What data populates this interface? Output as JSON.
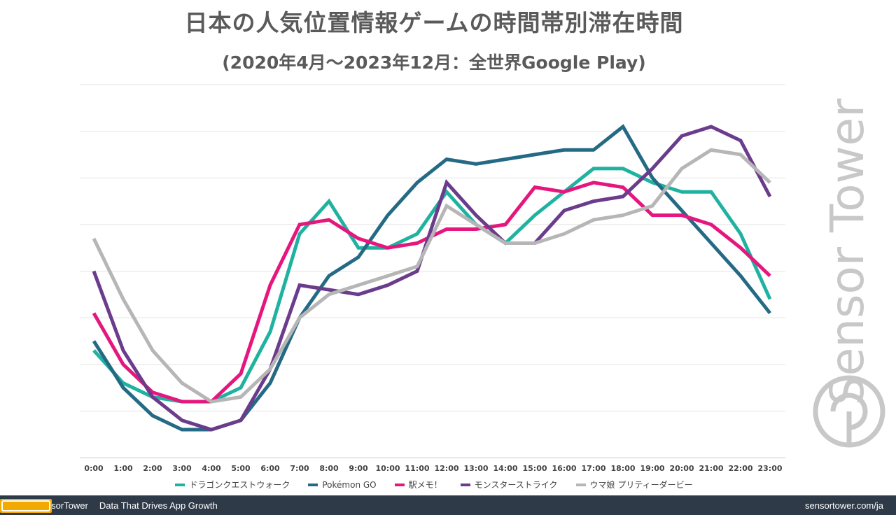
{
  "title": "日本の人気位置情報ゲームの時間帯別滞在時間",
  "subtitle": "(2020年4月～2023年12月：全世界Google Play)",
  "watermark_text": "Sensor Tower",
  "footer": {
    "brand": "SensorTower",
    "tagline": "Data That Drives App Growth",
    "url": "sensortower.com/ja"
  },
  "chart_data": {
    "type": "line",
    "title": "日本の人気位置情報ゲームの時間帯別滞在時間",
    "subtitle": "(2020年4月～2023年12月：全世界Google Play)",
    "x": [
      "0:00",
      "1:00",
      "2:00",
      "3:00",
      "4:00",
      "5:00",
      "6:00",
      "7:00",
      "8:00",
      "9:00",
      "10:00",
      "11:00",
      "12:00",
      "13:00",
      "14:00",
      "15:00",
      "16:00",
      "17:00",
      "18:00",
      "19:00",
      "20:00",
      "21:00",
      "22:00",
      "23:00"
    ],
    "ylim": [
      0,
      8
    ],
    "y_gridlines": 8,
    "y_tick_labels_shown": false,
    "grid": true,
    "legend_position": "bottom",
    "series": [
      {
        "name": "ドラゴンクエストウォーク",
        "color": "#20b2a0",
        "values": [
          2.3,
          1.6,
          1.3,
          1.2,
          1.2,
          1.5,
          2.7,
          4.8,
          5.5,
          4.5,
          4.5,
          4.8,
          5.7,
          5.0,
          4.6,
          5.2,
          5.7,
          6.2,
          6.2,
          5.9,
          5.7,
          5.7,
          4.8,
          3.4
        ]
      },
      {
        "name": "Pokémon GO",
        "color": "#256a84",
        "values": [
          2.5,
          1.5,
          0.9,
          0.6,
          0.6,
          0.8,
          1.6,
          3.0,
          3.9,
          4.3,
          5.2,
          5.9,
          6.4,
          6.3,
          6.4,
          6.5,
          6.6,
          6.6,
          7.1,
          6.0,
          5.3,
          4.6,
          3.9,
          3.1
        ]
      },
      {
        "name": "駅メモ！",
        "color": "#e5177e",
        "values": [
          3.1,
          2.0,
          1.4,
          1.2,
          1.2,
          1.8,
          3.7,
          5.0,
          5.1,
          4.7,
          4.5,
          4.6,
          4.9,
          4.9,
          5.0,
          5.8,
          5.7,
          5.9,
          5.8,
          5.2,
          5.2,
          5.0,
          4.5,
          3.9
        ]
      },
      {
        "name": "モンスターストライク",
        "color": "#6b3b8c",
        "values": [
          4.0,
          2.3,
          1.3,
          0.8,
          0.6,
          0.8,
          1.9,
          3.7,
          3.6,
          3.5,
          3.7,
          4.0,
          5.9,
          5.2,
          4.6,
          4.6,
          5.3,
          5.5,
          5.6,
          6.2,
          6.9,
          7.1,
          6.8,
          5.6
        ]
      },
      {
        "name": "ウマ娘 プリティーダービー",
        "color": "#b6b6b6",
        "values": [
          4.7,
          3.4,
          2.3,
          1.6,
          1.2,
          1.3,
          1.9,
          3.0,
          3.5,
          3.7,
          3.9,
          4.1,
          5.4,
          5.0,
          4.6,
          4.6,
          4.8,
          5.1,
          5.2,
          5.4,
          6.2,
          6.6,
          6.5,
          5.9
        ]
      }
    ]
  }
}
